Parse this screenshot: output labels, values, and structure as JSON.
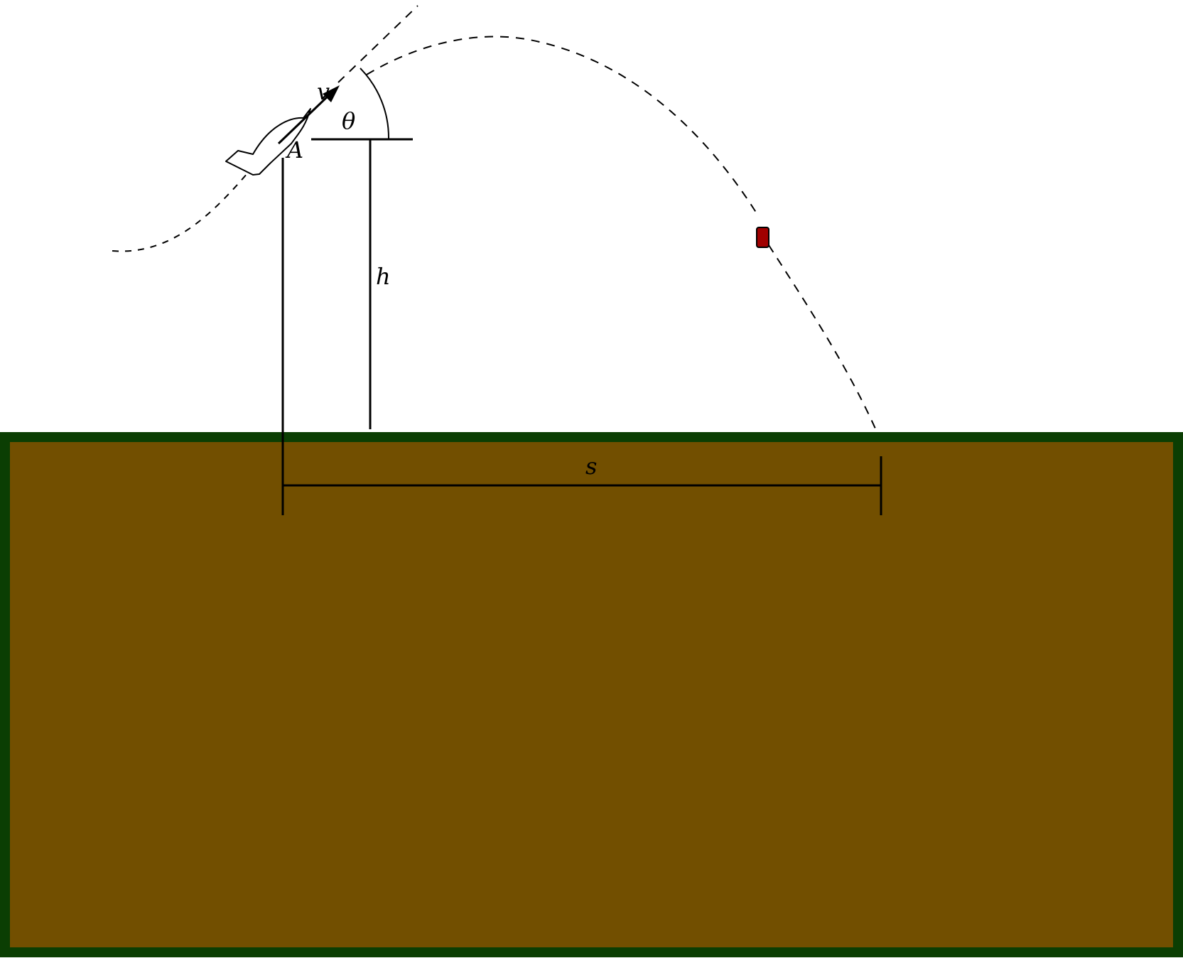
{
  "labels": {
    "point": "A",
    "velocity": "v",
    "angle": "θ",
    "height": "h",
    "distance": "s"
  },
  "colors": {
    "ground_fill": "#724F00",
    "ground_border": "#0B3E03",
    "package": "#A00000",
    "line": "#000000"
  }
}
